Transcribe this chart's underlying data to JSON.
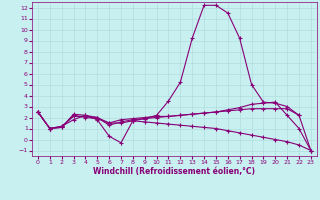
{
  "xlabel": "Windchill (Refroidissement éolien,°C)",
  "xlim": [
    -0.5,
    23.5
  ],
  "ylim": [
    -1.5,
    12.5
  ],
  "xticks": [
    0,
    1,
    2,
    3,
    4,
    5,
    6,
    7,
    8,
    9,
    10,
    11,
    12,
    13,
    14,
    15,
    16,
    17,
    18,
    19,
    20,
    21,
    22,
    23
  ],
  "yticks": [
    -1,
    0,
    1,
    2,
    3,
    4,
    5,
    6,
    7,
    8,
    9,
    10,
    11,
    12
  ],
  "background_color": "#c8f0f0",
  "line_color": "#880077",
  "grid_color": "#b0dede",
  "series": [
    {
      "x": [
        0,
        1,
        2,
        3,
        4,
        5,
        6,
        7,
        8,
        9,
        10,
        11,
        12,
        13,
        14,
        15,
        16,
        17,
        18,
        19,
        20,
        21,
        22
      ],
      "y": [
        2.5,
        1.0,
        1.1,
        2.3,
        2.2,
        1.8,
        0.3,
        -0.3,
        1.7,
        1.9,
        2.2,
        3.5,
        5.2,
        9.2,
        12.2,
        12.2,
        11.5,
        9.2,
        5.0,
        3.4,
        3.3,
        3.0,
        2.2
      ]
    },
    {
      "x": [
        0,
        1,
        2,
        3,
        4,
        5,
        6,
        7,
        8,
        9,
        10,
        11,
        12,
        13,
        14,
        15,
        16,
        17,
        18,
        19,
        20,
        21,
        22,
        23
      ],
      "y": [
        2.5,
        1.0,
        1.2,
        1.8,
        2.2,
        2.0,
        1.3,
        1.6,
        1.8,
        1.9,
        2.0,
        2.1,
        2.2,
        2.3,
        2.4,
        2.5,
        2.7,
        2.9,
        3.2,
        3.3,
        3.4,
        2.2,
        1.0,
        -1.0
      ]
    },
    {
      "x": [
        0,
        1,
        2,
        3,
        4,
        5,
        6,
        7,
        8,
        9,
        10,
        11,
        12,
        13,
        14,
        15,
        16,
        17,
        18,
        19,
        20,
        21,
        22,
        23
      ],
      "y": [
        2.5,
        1.0,
        1.2,
        2.1,
        2.1,
        2.0,
        1.5,
        1.8,
        1.9,
        2.0,
        2.1,
        2.1,
        2.2,
        2.3,
        2.4,
        2.5,
        2.6,
        2.7,
        2.8,
        2.8,
        2.8,
        2.8,
        2.2,
        -1.0
      ]
    },
    {
      "x": [
        0,
        1,
        2,
        3,
        4,
        5,
        6,
        7,
        8,
        9,
        10,
        11,
        12,
        13,
        14,
        15,
        16,
        17,
        18,
        19,
        20,
        21,
        22,
        23
      ],
      "y": [
        2.5,
        1.0,
        1.1,
        2.2,
        2.0,
        1.9,
        1.5,
        1.5,
        1.7,
        1.6,
        1.5,
        1.4,
        1.3,
        1.2,
        1.1,
        1.0,
        0.8,
        0.6,
        0.4,
        0.2,
        0.0,
        -0.2,
        -0.5,
        -1.0
      ]
    }
  ]
}
